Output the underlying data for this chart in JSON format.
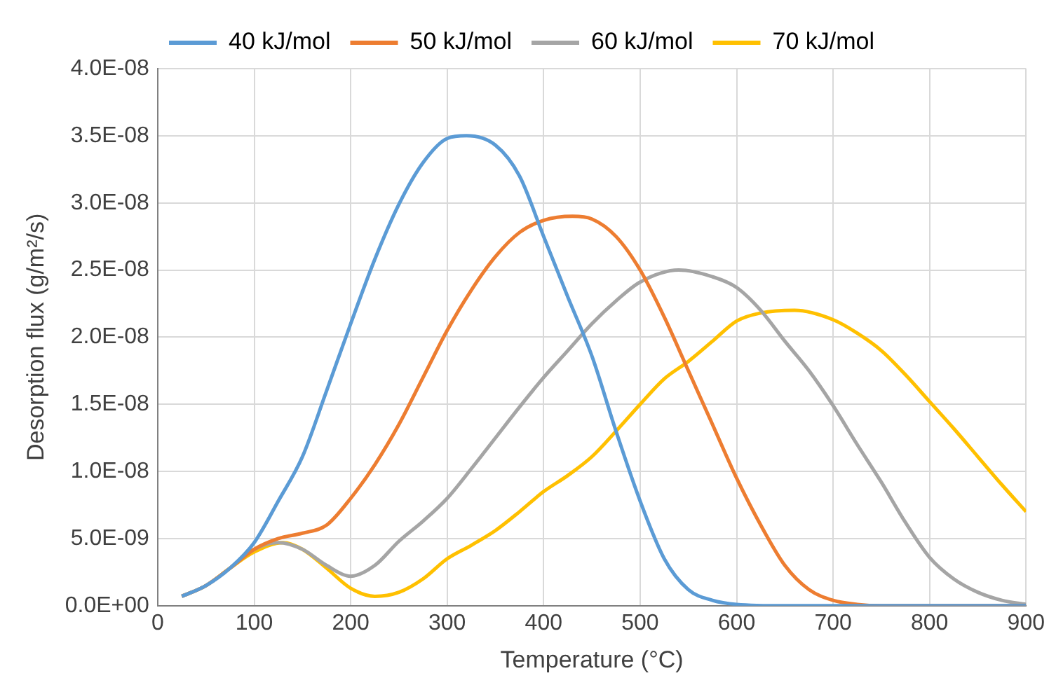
{
  "chart_data": {
    "type": "line",
    "xlabel": "Temperature (°C)",
    "ylabel": "Desorption flux (g/m²/s)",
    "xlim": [
      0,
      900
    ],
    "xticks": [
      0,
      100,
      200,
      300,
      400,
      500,
      600,
      700,
      800,
      900
    ],
    "ylim": [
      0,
      4e-08
    ],
    "yticks": [
      {
        "value": 0,
        "label": "0.0E+00"
      },
      {
        "value": 5e-09,
        "label": "5.0E-09"
      },
      {
        "value": 1e-08,
        "label": "1.0E-08"
      },
      {
        "value": 1.5e-08,
        "label": "1.5E-08"
      },
      {
        "value": 2e-08,
        "label": "2.0E-08"
      },
      {
        "value": 2.5e-08,
        "label": "2.5E-08"
      },
      {
        "value": 3e-08,
        "label": "3.0E-08"
      },
      {
        "value": 3.5e-08,
        "label": "3.5E-08"
      },
      {
        "value": 4e-08,
        "label": "4.0E-08"
      }
    ],
    "grid": true,
    "legend": "top",
    "marker": "none",
    "line_style": "solid",
    "series": [
      {
        "name": "40 kJ/mol",
        "color": "#5b9bd5",
        "x": [
          25,
          50,
          75,
          100,
          125,
          150,
          175,
          200,
          225,
          250,
          275,
          300,
          320,
          350,
          375,
          400,
          425,
          450,
          475,
          500,
          525,
          550,
          575,
          600,
          650,
          700,
          800,
          900
        ],
        "values": [
          7e-10,
          1.5e-09,
          2.8e-09,
          4.7e-09,
          7.8e-09,
          1.11e-08,
          1.6e-08,
          2.1e-08,
          2.58e-08,
          2.99e-08,
          3.3e-08,
          3.48e-08,
          3.5e-08,
          3.43e-08,
          3.2e-08,
          2.75e-08,
          2.3e-08,
          1.86e-08,
          1.3e-08,
          7.8e-09,
          3.5e-09,
          1.2e-09,
          4e-10,
          1e-10,
          0,
          0,
          0,
          0
        ]
      },
      {
        "name": "50 kJ/mol",
        "color": "#ed7d31",
        "x": [
          25,
          50,
          75,
          100,
          125,
          150,
          175,
          200,
          225,
          250,
          275,
          300,
          325,
          350,
          375,
          400,
          430,
          450,
          475,
          500,
          525,
          550,
          575,
          600,
          625,
          650,
          675,
          700,
          725,
          750,
          900
        ],
        "values": [
          7e-10,
          1.5e-09,
          2.8e-09,
          4.2e-09,
          5e-09,
          5.4e-09,
          6e-09,
          8e-09,
          1.05e-08,
          1.35e-08,
          1.7e-08,
          2.05e-08,
          2.35e-08,
          2.6e-08,
          2.78e-08,
          2.87e-08,
          2.9e-08,
          2.88e-08,
          2.75e-08,
          2.5e-08,
          2.15e-08,
          1.75e-08,
          1.35e-08,
          9.5e-09,
          6e-09,
          3e-09,
          1.2e-09,
          4e-10,
          1e-10,
          0,
          0
        ]
      },
      {
        "name": "60 kJ/mol",
        "color": "#a5a5a5",
        "x": [
          25,
          50,
          75,
          100,
          125,
          150,
          175,
          200,
          225,
          250,
          275,
          300,
          325,
          350,
          375,
          400,
          425,
          450,
          475,
          500,
          540,
          575,
          600,
          625,
          650,
          675,
          700,
          725,
          750,
          775,
          800,
          825,
          850,
          875,
          900
        ],
        "values": [
          7e-10,
          1.5e-09,
          2.8e-09,
          4.2e-09,
          4.7e-09,
          4.2e-09,
          3e-09,
          2.2e-09,
          3e-09,
          4.8e-09,
          6.3e-09,
          8e-09,
          1.02e-08,
          1.25e-08,
          1.48e-08,
          1.7e-08,
          1.9e-08,
          2.1e-08,
          2.27e-08,
          2.41e-08,
          2.5e-08,
          2.45e-08,
          2.37e-08,
          2.2e-08,
          1.97e-08,
          1.75e-08,
          1.49e-08,
          1.2e-08,
          9.2e-09,
          6.2e-09,
          3.6e-09,
          2e-09,
          1e-09,
          4e-10,
          1e-10
        ]
      },
      {
        "name": "70 kJ/mol",
        "color": "#ffc000",
        "x": [
          25,
          50,
          75,
          100,
          130,
          150,
          175,
          200,
          225,
          250,
          275,
          300,
          325,
          350,
          375,
          400,
          425,
          450,
          475,
          500,
          525,
          550,
          575,
          600,
          625,
          660,
          700,
          725,
          750,
          775,
          800,
          825,
          850,
          875,
          900
        ],
        "values": [
          7e-10,
          1.5e-09,
          2.8e-09,
          4e-09,
          4.7e-09,
          4.2e-09,
          2.8e-09,
          1.3e-09,
          7e-10,
          1e-09,
          2e-09,
          3.5e-09,
          4.5e-09,
          5.6e-09,
          7e-09,
          8.5e-09,
          9.7e-09,
          1.11e-08,
          1.3e-08,
          1.5e-08,
          1.69e-08,
          1.82e-08,
          1.97e-08,
          2.12e-08,
          2.18e-08,
          2.2e-08,
          2.13e-08,
          2.03e-08,
          1.9e-08,
          1.72e-08,
          1.52e-08,
          1.32e-08,
          1.11e-08,
          9e-09,
          7e-09
        ]
      }
    ]
  }
}
